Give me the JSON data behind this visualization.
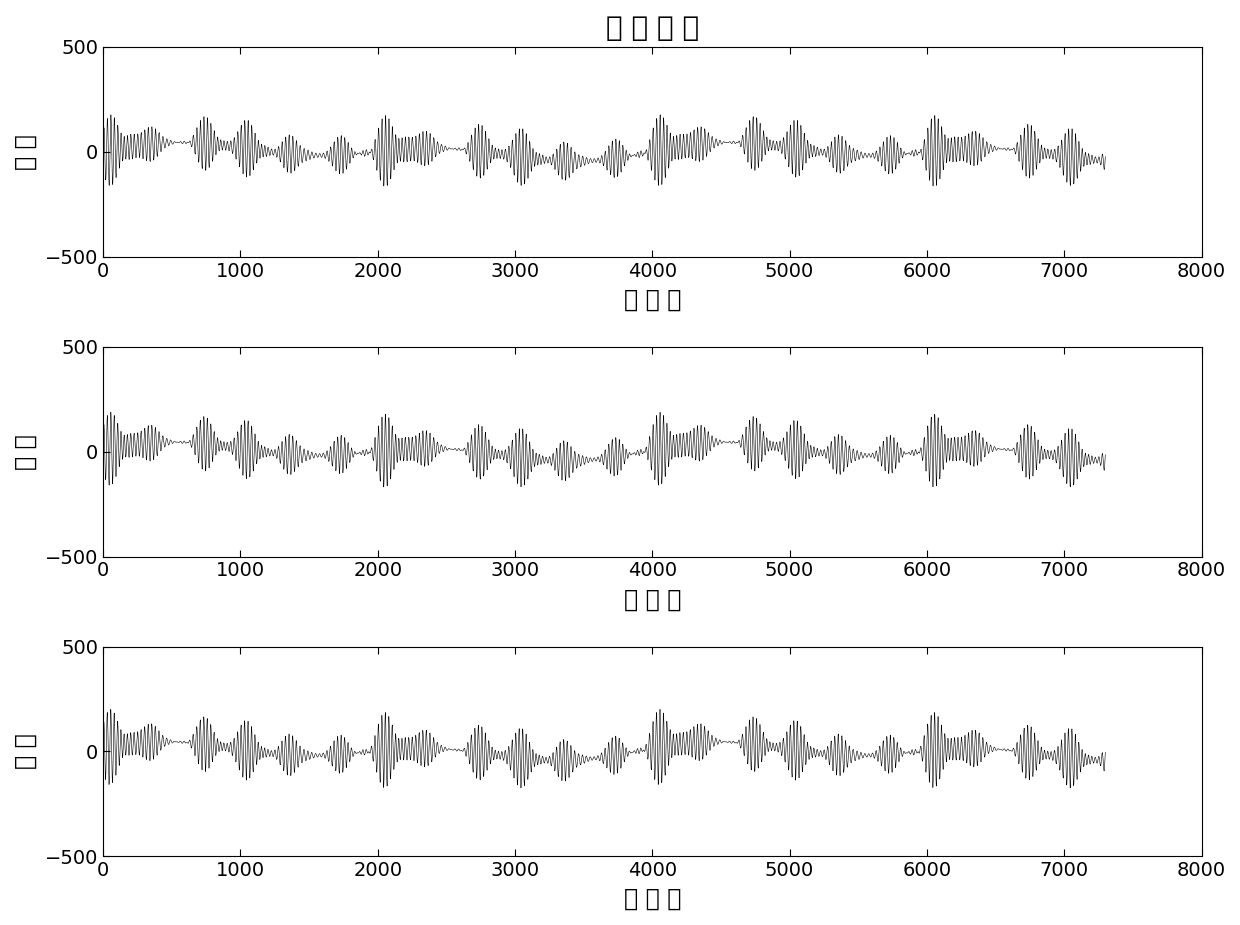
{
  "title": "输 入 信 号",
  "xlabel": "采 样 点",
  "ylabel": "幅 値",
  "xlim": [
    0,
    8000
  ],
  "ylim": [
    -500,
    500
  ],
  "xticks": [
    0,
    1000,
    2000,
    3000,
    4000,
    5000,
    6000,
    7000,
    8000
  ],
  "yticks": [
    -500,
    0,
    500
  ],
  "n_samples": 7300,
  "title_fontsize": 20,
  "label_fontsize": 17,
  "tick_fontsize": 14,
  "line_color": "#000000",
  "line_width": 0.4,
  "bg_color": "#ffffff",
  "n_subplots": 3
}
